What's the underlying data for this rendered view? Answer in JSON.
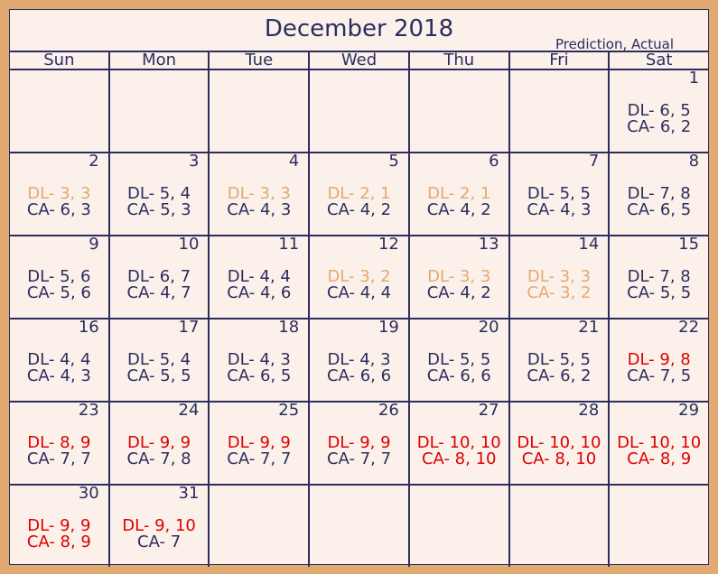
{
  "title": "December 2018",
  "legend": "Prediction, Actual",
  "colors": {
    "normal": "#2b2d5e",
    "moderate": "#e2aa70",
    "high": "#dd0000",
    "cell_bg": "#fbf1ea",
    "border": "#e2aa70"
  },
  "weekdays": [
    "Sun",
    "Mon",
    "Tue",
    "Wed",
    "Thu",
    "Fri",
    "Sat"
  ],
  "weeks": [
    [
      {
        "day": "",
        "dl": "",
        "ca": "",
        "dl_level": "normal",
        "ca_level": "normal"
      },
      {
        "day": "",
        "dl": "",
        "ca": "",
        "dl_level": "normal",
        "ca_level": "normal"
      },
      {
        "day": "",
        "dl": "",
        "ca": "",
        "dl_level": "normal",
        "ca_level": "normal"
      },
      {
        "day": "",
        "dl": "",
        "ca": "",
        "dl_level": "normal",
        "ca_level": "normal"
      },
      {
        "day": "",
        "dl": "",
        "ca": "",
        "dl_level": "normal",
        "ca_level": "normal"
      },
      {
        "day": "",
        "dl": "",
        "ca": "",
        "dl_level": "normal",
        "ca_level": "normal"
      },
      {
        "day": "1",
        "dl": "DL- 6, 5",
        "ca": "CA- 6, 2",
        "dl_level": "normal",
        "ca_level": "normal"
      }
    ],
    [
      {
        "day": "2",
        "dl": "DL- 3, 3",
        "ca": "CA- 6, 3",
        "dl_level": "moderate",
        "ca_level": "normal"
      },
      {
        "day": "3",
        "dl": "DL- 5, 4",
        "ca": "CA- 5, 3",
        "dl_level": "normal",
        "ca_level": "normal"
      },
      {
        "day": "4",
        "dl": "DL- 3, 3",
        "ca": "CA- 4, 3",
        "dl_level": "moderate",
        "ca_level": "normal"
      },
      {
        "day": "5",
        "dl": "DL- 2, 1",
        "ca": "CA- 4, 2",
        "dl_level": "moderate",
        "ca_level": "normal"
      },
      {
        "day": "6",
        "dl": "DL- 2, 1",
        "ca": "CA- 4, 2",
        "dl_level": "moderate",
        "ca_level": "normal"
      },
      {
        "day": "7",
        "dl": "DL- 5, 5",
        "ca": "CA- 4, 3",
        "dl_level": "normal",
        "ca_level": "normal"
      },
      {
        "day": "8",
        "dl": "DL- 7, 8",
        "ca": "CA- 6, 5",
        "dl_level": "normal",
        "ca_level": "normal"
      }
    ],
    [
      {
        "day": "9",
        "dl": "DL- 5, 6",
        "ca": "CA- 5, 6",
        "dl_level": "normal",
        "ca_level": "normal"
      },
      {
        "day": "10",
        "dl": "DL- 6, 7",
        "ca": "CA- 4, 7",
        "dl_level": "normal",
        "ca_level": "normal"
      },
      {
        "day": "11",
        "dl": "DL- 4, 4",
        "ca": "CA- 4, 6",
        "dl_level": "normal",
        "ca_level": "normal"
      },
      {
        "day": "12",
        "dl": "DL- 3, 2",
        "ca": "CA- 4, 4",
        "dl_level": "moderate",
        "ca_level": "normal"
      },
      {
        "day": "13",
        "dl": "DL- 3, 3",
        "ca": "CA- 4, 2",
        "dl_level": "moderate",
        "ca_level": "normal"
      },
      {
        "day": "14",
        "dl": "DL- 3, 3",
        "ca": "CA- 3, 2",
        "dl_level": "moderate",
        "ca_level": "moderate"
      },
      {
        "day": "15",
        "dl": "DL- 7, 8",
        "ca": "CA- 5, 5",
        "dl_level": "normal",
        "ca_level": "normal"
      }
    ],
    [
      {
        "day": "16",
        "dl": "DL- 4, 4",
        "ca": "CA- 4, 3",
        "dl_level": "normal",
        "ca_level": "normal"
      },
      {
        "day": "17",
        "dl": "DL- 5, 4",
        "ca": "CA- 5, 5",
        "dl_level": "normal",
        "ca_level": "normal"
      },
      {
        "day": "18",
        "dl": "DL- 4, 3",
        "ca": "CA- 6, 5",
        "dl_level": "normal",
        "ca_level": "normal"
      },
      {
        "day": "19",
        "dl": "DL- 4, 3",
        "ca": "CA- 6, 6",
        "dl_level": "normal",
        "ca_level": "normal"
      },
      {
        "day": "20",
        "dl": "DL- 5, 5",
        "ca": "CA- 6, 6",
        "dl_level": "normal",
        "ca_level": "normal"
      },
      {
        "day": "21",
        "dl": "DL- 5, 5",
        "ca": "CA- 6, 2",
        "dl_level": "normal",
        "ca_level": "normal"
      },
      {
        "day": "22",
        "dl": "DL- 9, 8",
        "ca": "CA- 7, 5",
        "dl_level": "high",
        "ca_level": "normal"
      }
    ],
    [
      {
        "day": "23",
        "dl": "DL- 8, 9",
        "ca": "CA- 7, 7",
        "dl_level": "high",
        "ca_level": "normal"
      },
      {
        "day": "24",
        "dl": "DL- 9, 9",
        "ca": "CA- 7, 8",
        "dl_level": "high",
        "ca_level": "normal"
      },
      {
        "day": "25",
        "dl": "DL- 9, 9",
        "ca": "CA- 7, 7",
        "dl_level": "high",
        "ca_level": "normal"
      },
      {
        "day": "26",
        "dl": "DL- 9, 9",
        "ca": "CA- 7, 7",
        "dl_level": "high",
        "ca_level": "normal"
      },
      {
        "day": "27",
        "dl": "DL- 10, 10",
        "ca": "CA- 8, 10",
        "dl_level": "high",
        "ca_level": "high"
      },
      {
        "day": "28",
        "dl": "DL- 10, 10",
        "ca": "CA- 8, 10",
        "dl_level": "high",
        "ca_level": "high"
      },
      {
        "day": "29",
        "dl": "DL- 10, 10",
        "ca": "CA- 8, 9",
        "dl_level": "high",
        "ca_level": "high"
      }
    ],
    [
      {
        "day": "30",
        "dl": "DL- 9, 9",
        "ca": "CA- 8, 9",
        "dl_level": "high",
        "ca_level": "high"
      },
      {
        "day": "31",
        "dl": "DL- 9, 10",
        "ca": "CA- 7",
        "dl_level": "high",
        "ca_level": "normal"
      },
      {
        "day": "",
        "dl": "",
        "ca": "",
        "dl_level": "normal",
        "ca_level": "normal"
      },
      {
        "day": "",
        "dl": "",
        "ca": "",
        "dl_level": "normal",
        "ca_level": "normal"
      },
      {
        "day": "",
        "dl": "",
        "ca": "",
        "dl_level": "normal",
        "ca_level": "normal"
      },
      {
        "day": "",
        "dl": "",
        "ca": "",
        "dl_level": "normal",
        "ca_level": "normal"
      },
      {
        "day": "",
        "dl": "",
        "ca": "",
        "dl_level": "normal",
        "ca_level": "normal"
      }
    ]
  ]
}
